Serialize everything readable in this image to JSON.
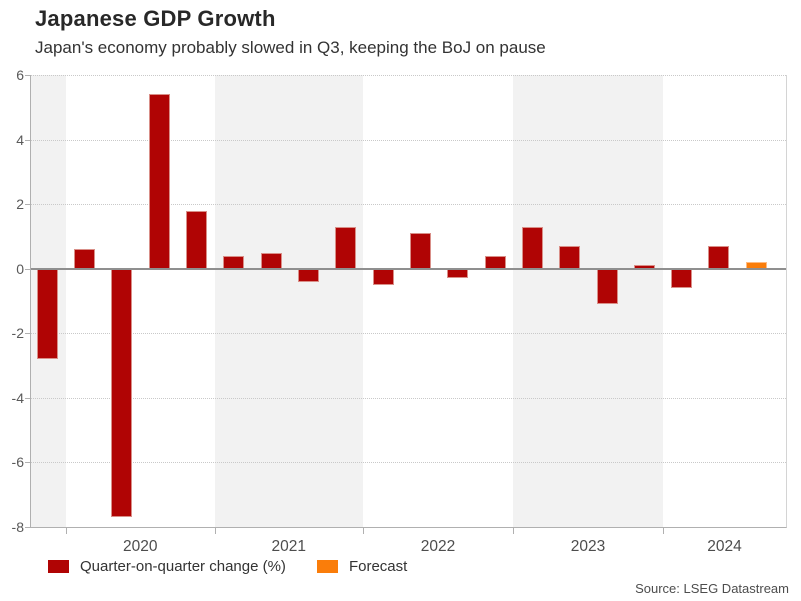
{
  "header": {
    "title": "Japanese GDP Growth",
    "subtitle": "Japan's economy probably slowed in Q3, keeping the BoJ on pause"
  },
  "legend": {
    "items": [
      {
        "label": "Quarter-on-quarter change (%)",
        "color": "#b00404"
      },
      {
        "label": "Forecast",
        "color": "#fa7d0a"
      }
    ]
  },
  "footer": {
    "source": "Source: LSEG Datastream"
  },
  "colors": {
    "bar": "#b00404",
    "bar_border": "#d98f88",
    "forecast": "#fa7d0a",
    "forecast_border": "#ffbb80",
    "band": "#f2f2f2",
    "grid": "#c9c9c9",
    "zero_line": "#8f8f8f",
    "axis": "#b0b0b0",
    "tick_label": "#595959"
  },
  "chart_data": {
    "type": "bar",
    "title": "Japanese GDP Growth",
    "subtitle": "Japan's economy probably slowed in Q3, keeping the BoJ on pause",
    "ylabel": "Quarter-on-quarter change (%)",
    "ylim": [
      -8,
      6
    ],
    "yticks": [
      6,
      4,
      2,
      0,
      -2,
      -4,
      -6,
      -8
    ],
    "grid": "horizontal dotted, alternating gray year bands",
    "legend_position": "bottom-left",
    "year_labels": [
      "2020",
      "2021",
      "2022",
      "2023",
      "2024"
    ],
    "series": [
      {
        "name": "Quarter-on-quarter change (%)",
        "color": "#b00404"
      },
      {
        "name": "Forecast",
        "color": "#fa7d0a"
      }
    ],
    "points": [
      {
        "quarter": "2019 Q4",
        "value": -2.8,
        "forecast": false
      },
      {
        "quarter": "2020 Q1",
        "value": 0.6,
        "forecast": false
      },
      {
        "quarter": "2020 Q2",
        "value": -7.7,
        "forecast": false
      },
      {
        "quarter": "2020 Q3",
        "value": 5.4,
        "forecast": false
      },
      {
        "quarter": "2020 Q4",
        "value": 1.8,
        "forecast": false
      },
      {
        "quarter": "2021 Q1",
        "value": 0.4,
        "forecast": false
      },
      {
        "quarter": "2021 Q2",
        "value": 0.5,
        "forecast": false
      },
      {
        "quarter": "2021 Q3",
        "value": -0.4,
        "forecast": false
      },
      {
        "quarter": "2021 Q4",
        "value": 1.3,
        "forecast": false
      },
      {
        "quarter": "2022 Q1",
        "value": -0.5,
        "forecast": false
      },
      {
        "quarter": "2022 Q2",
        "value": 1.1,
        "forecast": false
      },
      {
        "quarter": "2022 Q3",
        "value": -0.3,
        "forecast": false
      },
      {
        "quarter": "2022 Q4",
        "value": 0.4,
        "forecast": false
      },
      {
        "quarter": "2023 Q1",
        "value": 1.3,
        "forecast": false
      },
      {
        "quarter": "2023 Q2",
        "value": 0.7,
        "forecast": false
      },
      {
        "quarter": "2023 Q3",
        "value": -1.1,
        "forecast": false
      },
      {
        "quarter": "2023 Q4",
        "value": 0.1,
        "forecast": false
      },
      {
        "quarter": "2024 Q1",
        "value": -0.6,
        "forecast": false
      },
      {
        "quarter": "2024 Q2",
        "value": 0.7,
        "forecast": false
      },
      {
        "quarter": "2024 Q3",
        "value": 0.2,
        "forecast": true
      }
    ]
  }
}
